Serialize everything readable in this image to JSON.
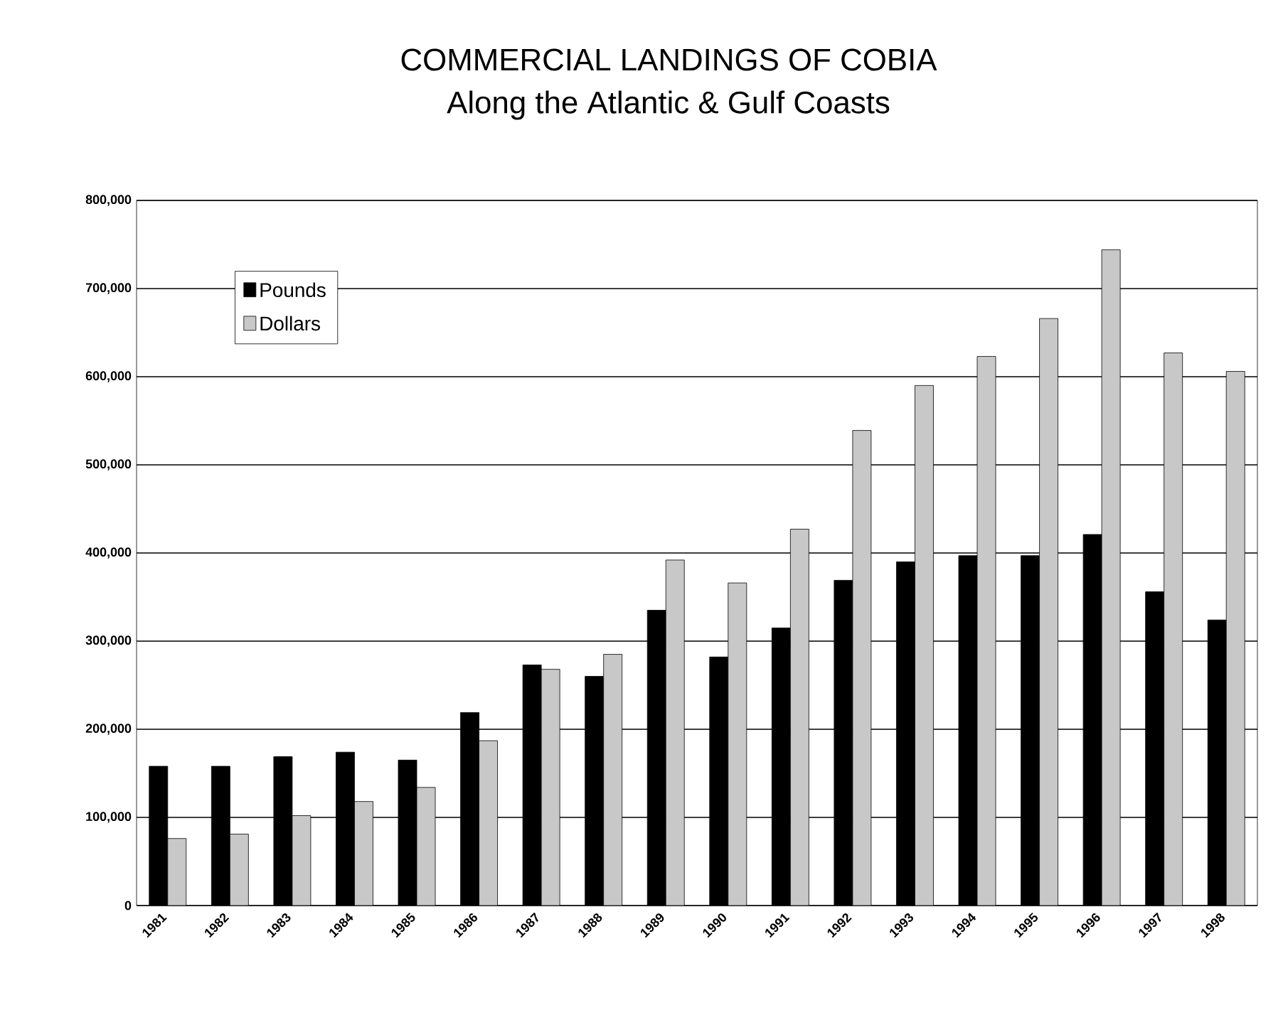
{
  "chart_data": {
    "type": "bar",
    "title": "COMMERCIAL LANDINGS OF COBIA",
    "subtitle": "Along the Atlantic & Gulf Coasts",
    "categories": [
      "1981",
      "1982",
      "1983",
      "1984",
      "1985",
      "1986",
      "1987",
      "1988",
      "1989",
      "1990",
      "1991",
      "1992",
      "1993",
      "1994",
      "1995",
      "1996",
      "1997",
      "1998"
    ],
    "series": [
      {
        "name": "Pounds",
        "color": "#000000",
        "values": [
          158000,
          158000,
          169000,
          174000,
          165000,
          219000,
          273000,
          260000,
          335000,
          282000,
          315000,
          369000,
          390000,
          397000,
          397000,
          421000,
          356000,
          324000
        ]
      },
      {
        "name": "Dollars",
        "color": "#c8c8c8",
        "values": [
          76000,
          81000,
          102000,
          118000,
          134000,
          187000,
          268000,
          285000,
          392000,
          366000,
          427000,
          539000,
          590000,
          623000,
          666000,
          744000,
          627000,
          606000
        ]
      }
    ],
    "ylim": [
      0,
      800000
    ],
    "yticks": [
      {
        "value": 0,
        "label": "0"
      },
      {
        "value": 100000,
        "label": "100,000"
      },
      {
        "value": 200000,
        "label": "200,000"
      },
      {
        "value": 300000,
        "label": "300,000"
      },
      {
        "value": 400000,
        "label": "400,000"
      },
      {
        "value": 500000,
        "label": "500,000"
      },
      {
        "value": 600000,
        "label": "600,000"
      },
      {
        "value": 700000,
        "label": "700,000"
      },
      {
        "value": 800000,
        "label": "800,000"
      }
    ],
    "grid": "y",
    "legend": "top left"
  }
}
